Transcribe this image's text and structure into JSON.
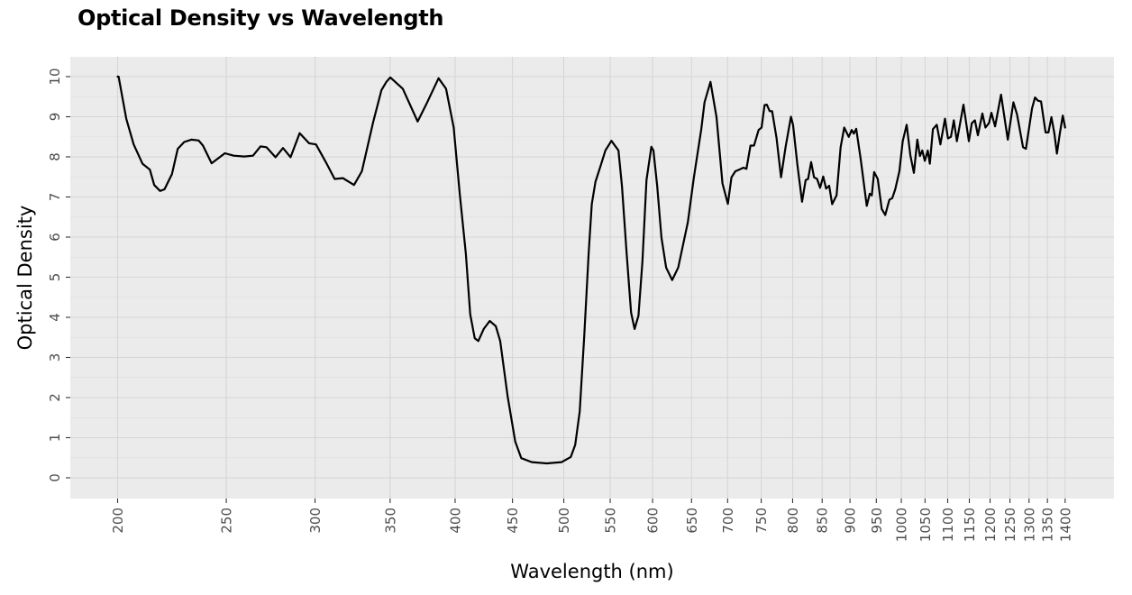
{
  "chart_data": {
    "type": "line",
    "title": "Optical Density vs Wavelength",
    "xlabel": "Wavelength (nm)",
    "ylabel": "Optical Density",
    "x_scale": "log10",
    "xlim": [
      182,
      1540
    ],
    "ylim": [
      -0.5,
      10.5
    ],
    "grid": true,
    "panel_background": "#ebebeb",
    "grid_color": "#d6d6d6",
    "line_color": "#000000",
    "x_ticks": [
      200,
      250,
      300,
      350,
      400,
      450,
      500,
      550,
      600,
      650,
      700,
      750,
      800,
      850,
      900,
      950,
      1000,
      1050,
      1100,
      1150,
      1200,
      1250,
      1300,
      1350,
      1400
    ],
    "x_tick_labels": [
      "200",
      "250",
      "300",
      "350",
      "400",
      "450",
      "500",
      "550",
      "600",
      "650",
      "700",
      "750",
      "800",
      "850",
      "900",
      "950",
      "1000",
      "1050",
      "1100",
      "1150",
      "1200",
      "1250",
      "1300",
      "1350",
      "1400"
    ],
    "y_ticks": [
      0,
      1,
      2,
      3,
      4,
      5,
      6,
      7,
      8,
      9,
      10
    ],
    "y_tick_labels": [
      "0",
      "1",
      "2",
      "3",
      "4",
      "5",
      "6",
      "7",
      "8",
      "9",
      "10"
    ],
    "series": [
      {
        "name": "Optical Density",
        "x": [
          200,
          200.4,
          203.6,
          206.7,
          210.5,
          213.7,
          215.6,
          218.2,
          220.2,
          223.6,
          226.3,
          229.3,
          232.7,
          236.2,
          238.3,
          242.6,
          249.3,
          253.9,
          259.4,
          264.1,
          268.2,
          271.5,
          276.6,
          280.9,
          285.3,
          290.7,
          296.3,
          300.6,
          306.7,
          312.3,
          317.7,
          325,
          330.3,
          338.1,
          343.8,
          347.3,
          350.2,
          359.2,
          370.4,
          377.3,
          386.6,
          392.6,
          398.8,
          403.8,
          408.9,
          412.6,
          416.4,
          419.5,
          424.2,
          429.5,
          434.8,
          438.8,
          445.6,
          452.6,
          458.2,
          468.2,
          482.8,
          497.8,
          507.2,
          511.9,
          516.6,
          521.4,
          526.3,
          529.6,
          533.6,
          539.5,
          544.6,
          551.4,
          559.4,
          563.5,
          568.8,
          574.1,
          578.3,
          582.9,
          587.7,
          592.6,
          598.5,
          601.1,
          605.8,
          611,
          617,
          624.7,
          632.5,
          645.1,
          653.2,
          663.2,
          667.6,
          675.8,
          684.2,
          692.6,
          700.4,
          705.6,
          711.2,
          716.6,
          723.2,
          727.6,
          733.6,
          739,
          746,
          750.6,
          755.2,
          758.6,
          763.2,
          767,
          774,
          781.2,
          788.4,
          797.2,
          800.6,
          808,
          815.6,
          821.6,
          825.8,
          831,
          836,
          841.2,
          846.4,
          851.8,
          857,
          862.4,
          867.6,
          875.6,
          882.8,
          889.4,
          897.6,
          903.2,
          907,
          911.6,
          920,
          931.6,
          937.2,
          941.2,
          945.8,
          952.8,
          960.6,
          967.6,
          975.8,
          981.6,
          987.6,
          996,
          1003,
          1011.2,
          1018.6,
          1026.2,
          1033.4,
          1039,
          1044,
          1049.4,
          1055.8,
          1060.4,
          1067,
          1075.6,
          1083.6,
          1093.8,
          1100.6,
          1107.4,
          1114,
          1121,
          1136.2,
          1148.8,
          1156,
          1163.2,
          1170.4,
          1181.2,
          1188.6,
          1197.4,
          1203.2,
          1212.4,
          1227.4,
          1244.6,
          1258.8,
          1268.2,
          1284,
          1291.8,
          1308,
          1316,
          1324.2,
          1332.4,
          1344.8,
          1352.8,
          1361.2,
          1369.6,
          1376.6,
          1384.8,
          1393.4,
          1400
        ],
        "y": [
          10.0,
          10.0,
          8.95,
          8.31,
          7.83,
          7.68,
          7.3,
          7.15,
          7.19,
          7.57,
          8.2,
          8.37,
          8.43,
          8.41,
          8.28,
          7.84,
          8.09,
          8.03,
          8.01,
          8.03,
          8.26,
          8.24,
          7.99,
          8.22,
          7.99,
          8.59,
          8.34,
          8.31,
          7.87,
          7.45,
          7.47,
          7.3,
          7.64,
          8.88,
          9.66,
          9.87,
          9.98,
          9.7,
          8.88,
          9.33,
          9.96,
          9.7,
          8.73,
          7.08,
          5.58,
          4.08,
          3.48,
          3.41,
          3.71,
          3.91,
          3.78,
          3.41,
          2.02,
          0.9,
          0.49,
          0.39,
          0.36,
          0.39,
          0.52,
          0.82,
          1.65,
          3.52,
          5.62,
          6.82,
          7.38,
          7.79,
          8.16,
          8.4,
          8.16,
          7.27,
          5.62,
          4.12,
          3.71,
          4.04,
          5.39,
          7.42,
          8.25,
          8.16,
          7.27,
          5.99,
          5.24,
          4.93,
          5.24,
          6.37,
          7.49,
          8.69,
          9.36,
          9.87,
          8.99,
          7.34,
          6.83,
          7.49,
          7.64,
          7.68,
          7.73,
          7.7,
          8.28,
          8.28,
          8.67,
          8.73,
          9.29,
          9.3,
          9.14,
          9.14,
          8.47,
          7.49,
          8.24,
          9.0,
          8.8,
          7.79,
          6.88,
          7.42,
          7.45,
          7.87,
          7.49,
          7.45,
          7.23,
          7.51,
          7.21,
          7.28,
          6.82,
          7.04,
          8.24,
          8.73,
          8.5,
          8.67,
          8.58,
          8.7,
          7.94,
          6.78,
          7.08,
          7.04,
          7.62,
          7.45,
          6.7,
          6.55,
          6.93,
          6.97,
          7.19,
          7.64,
          8.39,
          8.8,
          8.05,
          7.6,
          8.43,
          8.02,
          8.16,
          7.9,
          8.16,
          7.83,
          8.69,
          8.8,
          8.31,
          8.95,
          8.46,
          8.5,
          8.91,
          8.39,
          9.3,
          8.39,
          8.84,
          8.91,
          8.54,
          9.08,
          8.73,
          8.84,
          9.1,
          8.76,
          9.55,
          8.43,
          9.36,
          9.06,
          8.24,
          8.2,
          9.21,
          9.48,
          9.4,
          9.38,
          8.61,
          8.61,
          8.99,
          8.58,
          8.08,
          8.58,
          9.03,
          8.73
        ]
      }
    ]
  }
}
